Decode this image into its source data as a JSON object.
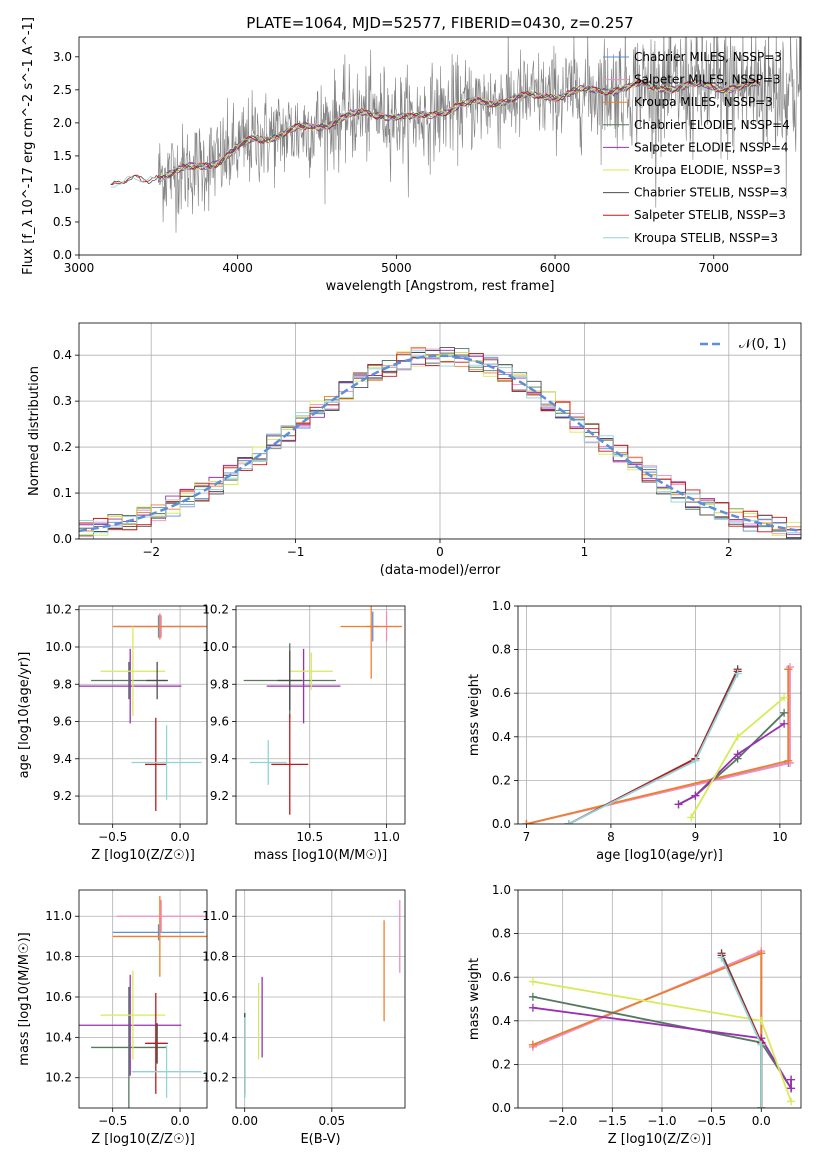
{
  "figure": {
    "title": "PLATE=1064, MJD=52577, FIBERID=0430, z=0.257"
  },
  "colors": {
    "chabrier_miles": "#5b8fd9",
    "salpeter_miles": "#f28cc4",
    "kroupa_miles": "#ef7f2a",
    "chabrier_elodie": "#55785e",
    "salpeter_elodie": "#9a2fb3",
    "kroupa_elodie": "#d8ea5a",
    "chabrier_stelib": "#4d4d4d",
    "salpeter_stelib": "#c41818",
    "kroupa_stelib": "#8fd4d8",
    "data_spectrum": "#808080",
    "normal_curve": "#5b8fd9",
    "grid": "#b0b0b0"
  },
  "chart_data": [
    {
      "type": "line",
      "title": "PLATE=1064, MJD=52577, FIBERID=0430, z=0.257",
      "xlabel": "wavelength [Angstrom, rest frame]",
      "ylabel": "Flux [f_λ 10^-17 erg cm^-2 s^-1 A^-1]",
      "xlim": [
        3000,
        7550
      ],
      "ylim": [
        0,
        3.3
      ],
      "xticks": [
        "3000",
        "4000",
        "5000",
        "6000",
        "7000"
      ],
      "yticks": [
        "0.0",
        "0.5",
        "1.0",
        "1.5",
        "2.0",
        "2.5",
        "3.0"
      ],
      "grid": false,
      "legend_position": "top-right",
      "legend": [
        {
          "label": "Chabrier MILES, NSSP=3",
          "color_key": "chabrier_miles"
        },
        {
          "label": "Salpeter MILES, NSSP=3",
          "color_key": "salpeter_miles"
        },
        {
          "label": "Kroupa MILES, NSSP=3",
          "color_key": "kroupa_miles"
        },
        {
          "label": "Chabrier ELODIE, NSSP=4",
          "color_key": "chabrier_elodie"
        },
        {
          "label": "Salpeter ELODIE, NSSP=4",
          "color_key": "salpeter_elodie"
        },
        {
          "label": "Kroupa ELODIE, NSSP=3",
          "color_key": "kroupa_elodie"
        },
        {
          "label": "Chabrier STELIB, NSSP=3",
          "color_key": "chabrier_stelib"
        },
        {
          "label": "Salpeter STELIB, NSSP=3",
          "color_key": "salpeter_stelib"
        },
        {
          "label": "Kroupa STELIB, NSSP=3",
          "color_key": "kroupa_stelib"
        }
      ],
      "continuum": {
        "x": [
          3200,
          3500,
          3700,
          3900,
          4100,
          4300,
          4500,
          4700,
          4900,
          5100,
          5300,
          5500,
          5700,
          5900,
          6100,
          6300,
          6500,
          6700,
          6900,
          7100,
          7300
        ],
        "y": [
          1.05,
          1.2,
          1.3,
          1.45,
          1.75,
          1.85,
          1.95,
          2.1,
          2.15,
          2.05,
          2.2,
          2.3,
          2.35,
          2.4,
          2.45,
          2.5,
          2.55,
          2.55,
          2.55,
          2.55,
          2.55
        ]
      },
      "data_range": [
        3500,
        7550
      ]
    },
    {
      "type": "histogram",
      "xlabel": "(data-model)/error",
      "ylabel": "Normed distribution",
      "xlim": [
        -2.5,
        2.5
      ],
      "ylim": [
        0,
        0.47
      ],
      "xticks": [
        "−2",
        "−1",
        "0",
        "1",
        "2"
      ],
      "yticks": [
        "0.0",
        "0.1",
        "0.2",
        "0.3",
        "0.4"
      ],
      "grid": true,
      "legend_position": "top-right",
      "legend": [
        {
          "label": "𝒩(0, 1)",
          "color_key": "normal_curve"
        }
      ],
      "bin_width": 0.1
    },
    {
      "type": "scatter",
      "xlabel": "Z [log10(Z/Z☉)]",
      "ylabel": "age  [log10(age/yr)]",
      "xlim": [
        -0.75,
        0.2
      ],
      "ylim": [
        9.05,
        10.22
      ],
      "xticks": [
        "−0.5",
        "0.0"
      ],
      "yticks": [
        "9.2",
        "9.4",
        "9.6",
        "9.8",
        "10.0",
        "10.2"
      ],
      "grid": true,
      "errorbars": [
        {
          "color_key": "chabrier_miles",
          "x": -0.16,
          "xerr": [
            0.34,
            0.34
          ],
          "y": 10.11,
          "yerr": [
            0.06,
            0.06
          ]
        },
        {
          "color_key": "salpeter_miles",
          "x": -0.14,
          "xerr": [
            0.33,
            0.33
          ],
          "y": 10.11,
          "yerr": [
            0.06,
            0.06
          ]
        },
        {
          "color_key": "kroupa_miles",
          "x": -0.15,
          "xerr": [
            0.35,
            0.35
          ],
          "y": 10.11,
          "yerr": [
            0.07,
            0.07
          ]
        },
        {
          "color_key": "chabrier_elodie",
          "x": -0.38,
          "xerr": [
            0.28,
            0.28
          ],
          "y": 9.82,
          "yerr": [
            0.1,
            0.1
          ]
        },
        {
          "color_key": "salpeter_elodie",
          "x": -0.37,
          "xerr": [
            0.38,
            0.38
          ],
          "y": 9.79,
          "yerr": [
            0.2,
            0.2
          ]
        },
        {
          "color_key": "kroupa_elodie",
          "x": -0.35,
          "xerr": [
            0.24,
            0.24
          ],
          "y": 9.87,
          "yerr": [
            0.24,
            0.24
          ]
        },
        {
          "color_key": "chabrier_stelib",
          "x": -0.17,
          "xerr": [
            0.08,
            0.08
          ],
          "y": 9.82,
          "yerr": [
            0.1,
            0.1
          ]
        },
        {
          "color_key": "salpeter_stelib",
          "x": -0.18,
          "xerr": [
            0.08,
            0.08
          ],
          "y": 9.37,
          "yerr": [
            0.25,
            0.25
          ]
        },
        {
          "color_key": "kroupa_stelib",
          "x": -0.1,
          "xerr": [
            0.26,
            0.26
          ],
          "y": 9.38,
          "yerr": [
            0.2,
            0.2
          ]
        }
      ]
    },
    {
      "type": "scatter",
      "xlabel": "mass [log10(M/M☉)]",
      "ylabel": "",
      "xlim": [
        10.02,
        11.12
      ],
      "ylim": [
        9.05,
        10.22
      ],
      "xticks": [
        "10.5",
        "11.0"
      ],
      "yticks": [
        "9.2",
        "9.4",
        "9.6",
        "9.8",
        "10.0",
        "10.2"
      ],
      "grid": true,
      "errorbars": [
        {
          "color_key": "chabrier_miles",
          "x": 10.91,
          "xerr": [
            0.04,
            0.04
          ],
          "y": 10.11,
          "yerr": [
            0.08,
            0.08
          ]
        },
        {
          "color_key": "salpeter_miles",
          "x": 11.0,
          "xerr": [
            0.1,
            0.1
          ],
          "y": 10.11,
          "yerr": [
            0.08,
            0.08
          ]
        },
        {
          "color_key": "kroupa_miles",
          "x": 10.9,
          "xerr": [
            0.2,
            0.2
          ],
          "y": 10.11,
          "yerr": [
            0.28,
            0.28
          ]
        },
        {
          "color_key": "chabrier_elodie",
          "x": 10.37,
          "xerr": [
            0.3,
            0.3
          ],
          "y": 9.82,
          "yerr": [
            0.2,
            0.2
          ]
        },
        {
          "color_key": "salpeter_elodie",
          "x": 10.46,
          "xerr": [
            0.24,
            0.24
          ],
          "y": 9.79,
          "yerr": [
            0.2,
            0.2
          ]
        },
        {
          "color_key": "kroupa_elodie",
          "x": 10.51,
          "xerr": [
            0.14,
            0.14
          ],
          "y": 9.87,
          "yerr": [
            0.1,
            0.1
          ]
        },
        {
          "color_key": "chabrier_stelib",
          "x": 10.37,
          "xerr": [
            0.08,
            0.08
          ],
          "y": 9.82,
          "yerr": [
            0.16,
            0.16
          ]
        },
        {
          "color_key": "salpeter_stelib",
          "x": 10.37,
          "xerr": [
            0.12,
            0.12
          ],
          "y": 9.37,
          "yerr": [
            0.27,
            0.27
          ]
        },
        {
          "color_key": "kroupa_stelib",
          "x": 10.23,
          "xerr": [
            0.12,
            0.12
          ],
          "y": 9.38,
          "yerr": [
            0.12,
            0.12
          ]
        }
      ]
    },
    {
      "type": "line",
      "xlabel": "age  [log10(age/yr)]",
      "ylabel": "mass weight",
      "xlim": [
        6.9,
        10.25
      ],
      "ylim": [
        0,
        1
      ],
      "xticks": [
        "7",
        "8",
        "9",
        "10"
      ],
      "yticks": [
        "0.0",
        "0.2",
        "0.4",
        "0.6",
        "0.8",
        "1.0"
      ],
      "grid": true,
      "series": [
        {
          "color_key": "chabrier_miles",
          "x": [
            7.0,
            10.1,
            10.1
          ],
          "y": [
            0.0,
            0.28,
            0.71
          ]
        },
        {
          "color_key": "salpeter_miles",
          "x": [
            7.0,
            10.12,
            10.12
          ],
          "y": [
            0.0,
            0.28,
            0.72
          ]
        },
        {
          "color_key": "kroupa_miles",
          "x": [
            7.0,
            10.1,
            10.1
          ],
          "y": [
            0.0,
            0.29,
            0.71
          ]
        },
        {
          "color_key": "chabrier_elodie",
          "x": [
            8.8,
            9.0,
            9.5,
            10.05
          ],
          "y": [
            0.09,
            0.13,
            0.3,
            0.51
          ]
        },
        {
          "color_key": "salpeter_elodie",
          "x": [
            8.8,
            9.0,
            9.5,
            10.05
          ],
          "y": [
            0.09,
            0.13,
            0.32,
            0.46
          ]
        },
        {
          "color_key": "kroupa_elodie",
          "x": [
            8.95,
            9.5,
            10.05
          ],
          "y": [
            0.03,
            0.4,
            0.58
          ]
        },
        {
          "color_key": "chabrier_stelib",
          "x": [
            7.5,
            9.0,
            9.5
          ],
          "y": [
            0.0,
            0.3,
            0.71
          ]
        },
        {
          "color_key": "salpeter_stelib",
          "x": [
            7.5,
            9.0,
            9.5
          ],
          "y": [
            0.0,
            0.3,
            0.7
          ]
        },
        {
          "color_key": "kroupa_stelib",
          "x": [
            7.5,
            9.0,
            9.5
          ],
          "y": [
            0.0,
            0.29,
            0.69
          ]
        }
      ]
    },
    {
      "type": "scatter",
      "xlabel": "Z [log10(Z/Z☉)]",
      "ylabel": "mass [log10(M/M☉)]",
      "xlim": [
        -0.75,
        0.2
      ],
      "ylim": [
        10.05,
        11.13
      ],
      "xticks": [
        "−0.5",
        "0.0"
      ],
      "yticks": [
        "10.2",
        "10.4",
        "10.6",
        "10.8",
        "11.0"
      ],
      "grid": true,
      "errorbars": [
        {
          "color_key": "chabrier_miles",
          "x": -0.16,
          "xerr": [
            0.34,
            0.34
          ],
          "y": 10.92,
          "yerr": [
            0.04,
            0.04
          ]
        },
        {
          "color_key": "salpeter_miles",
          "x": -0.14,
          "xerr": [
            0.33,
            0.33
          ],
          "y": 11.0,
          "yerr": [
            0.08,
            0.08
          ]
        },
        {
          "color_key": "kroupa_miles",
          "x": -0.15,
          "xerr": [
            0.35,
            0.35
          ],
          "y": 10.9,
          "yerr": [
            0.2,
            0.2
          ]
        },
        {
          "color_key": "chabrier_elodie",
          "x": -0.38,
          "xerr": [
            0.28,
            0.28
          ],
          "y": 10.35,
          "yerr": [
            0.3,
            0.3
          ]
        },
        {
          "color_key": "salpeter_elodie",
          "x": -0.37,
          "xerr": [
            0.38,
            0.38
          ],
          "y": 10.46,
          "yerr": [
            0.25,
            0.25
          ]
        },
        {
          "color_key": "kroupa_elodie",
          "x": -0.35,
          "xerr": [
            0.24,
            0.24
          ],
          "y": 10.51,
          "yerr": [
            0.22,
            0.22
          ]
        },
        {
          "color_key": "chabrier_stelib",
          "x": -0.17,
          "xerr": [
            0.08,
            0.08
          ],
          "y": 10.37,
          "yerr": [
            0.1,
            0.1
          ]
        },
        {
          "color_key": "salpeter_stelib",
          "x": -0.18,
          "xerr": [
            0.08,
            0.08
          ],
          "y": 10.37,
          "yerr": [
            0.25,
            0.25
          ]
        },
        {
          "color_key": "kroupa_stelib",
          "x": -0.1,
          "xerr": [
            0.26,
            0.26
          ],
          "y": 10.23,
          "yerr": [
            0.13,
            0.13
          ]
        }
      ]
    },
    {
      "type": "scatter",
      "xlabel": "E(B-V)",
      "ylabel": "",
      "xlim": [
        -0.005,
        0.092
      ],
      "ylim": [
        10.05,
        11.13
      ],
      "xticks": [
        "0.00",
        "0.05"
      ],
      "yticks": [
        "10.2",
        "10.4",
        "10.6",
        "10.8",
        "11.0"
      ],
      "grid": true,
      "errorbars": [
        {
          "color_key": "chabrier_miles",
          "x": 0.0,
          "y": 10.3,
          "yerr": [
            0.2,
            0.2
          ]
        },
        {
          "color_key": "salpeter_miles",
          "x": 0.089,
          "y": 10.9,
          "yerr": [
            0.18,
            0.18
          ]
        },
        {
          "color_key": "kroupa_miles",
          "x": 0.08,
          "y": 10.73,
          "yerr": [
            0.25,
            0.25
          ]
        },
        {
          "color_key": "chabrier_elodie",
          "x": 0.0,
          "y": 10.35,
          "yerr": [
            0.17,
            0.17
          ]
        },
        {
          "color_key": "salpeter_elodie",
          "x": 0.01,
          "y": 10.5,
          "yerr": [
            0.2,
            0.2
          ]
        },
        {
          "color_key": "kroupa_elodie",
          "x": 0.008,
          "y": 10.48,
          "yerr": [
            0.19,
            0.19
          ]
        },
        {
          "color_key": "chabrier_stelib",
          "x": 0.0,
          "y": 10.32,
          "yerr": [
            0.2,
            0.2
          ]
        },
        {
          "color_key": "salpeter_stelib",
          "x": 0.0,
          "y": 10.3,
          "yerr": [
            0.18,
            0.18
          ]
        },
        {
          "color_key": "kroupa_stelib",
          "x": 0.0,
          "y": 10.3,
          "yerr": [
            0.2,
            0.2
          ]
        }
      ]
    },
    {
      "type": "line",
      "xlabel": "Z [log10(Z/Z☉)]",
      "ylabel": "mass weight",
      "xlim": [
        -2.45,
        0.4
      ],
      "ylim": [
        0,
        1
      ],
      "xticks": [
        "−2.0",
        "−1.5",
        "−1.0",
        "−0.5",
        "0.0"
      ],
      "yticks": [
        "0.0",
        "0.2",
        "0.4",
        "0.6",
        "0.8",
        "1.0"
      ],
      "grid": true,
      "series": [
        {
          "color_key": "chabrier_miles",
          "x": [
            -2.3,
            0.0,
            0.0
          ],
          "y": [
            0.29,
            0.71,
            0.0
          ]
        },
        {
          "color_key": "salpeter_miles",
          "x": [
            -2.3,
            0.0,
            0.0
          ],
          "y": [
            0.28,
            0.72,
            0.0
          ]
        },
        {
          "color_key": "kroupa_miles",
          "x": [
            -2.3,
            0.0,
            0.0
          ],
          "y": [
            0.29,
            0.71,
            0.0
          ]
        },
        {
          "color_key": "chabrier_elodie",
          "x": [
            -2.3,
            0.0,
            0.3,
            0.3
          ],
          "y": [
            0.51,
            0.3,
            0.09,
            0.13
          ]
        },
        {
          "color_key": "salpeter_elodie",
          "x": [
            -2.3,
            0.0,
            0.3,
            0.3
          ],
          "y": [
            0.46,
            0.32,
            0.09,
            0.13
          ]
        },
        {
          "color_key": "kroupa_elodie",
          "x": [
            -2.3,
            0.0,
            0.3
          ],
          "y": [
            0.58,
            0.4,
            0.03
          ]
        },
        {
          "color_key": "chabrier_stelib",
          "x": [
            -0.4,
            0.0,
            0.0
          ],
          "y": [
            0.71,
            0.3,
            0.0
          ]
        },
        {
          "color_key": "salpeter_stelib",
          "x": [
            -0.4,
            0.0,
            0.0
          ],
          "y": [
            0.7,
            0.3,
            0.0
          ]
        },
        {
          "color_key": "kroupa_stelib",
          "x": [
            -0.4,
            0.0,
            0.0
          ],
          "y": [
            0.69,
            0.29,
            0.0
          ]
        }
      ]
    }
  ]
}
